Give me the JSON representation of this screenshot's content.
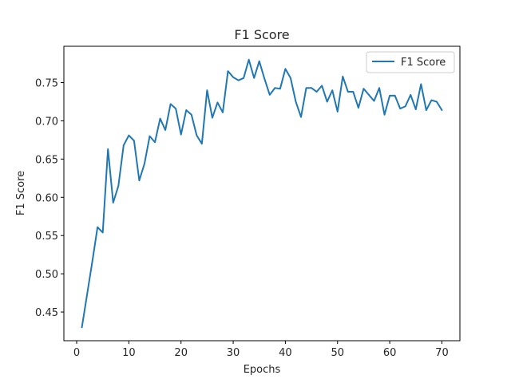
{
  "chart_data": {
    "type": "line",
    "title": "F1 Score",
    "xlabel": "Epochs",
    "ylabel": "F1 Score",
    "xlim": [
      -2.45,
      73.45
    ],
    "ylim": [
      0.4125,
      0.7975
    ],
    "xticks": [
      0,
      10,
      20,
      30,
      40,
      50,
      60,
      70
    ],
    "yticks": [
      0.45,
      0.5,
      0.55,
      0.6,
      0.65,
      0.7,
      0.75
    ],
    "ytick_labels": [
      "0.45",
      "0.50",
      "0.55",
      "0.60",
      "0.65",
      "0.70",
      "0.75"
    ],
    "grid": false,
    "legend_position": "upper right",
    "line_color": "#1f77b4",
    "series": [
      {
        "name": "F1 Score",
        "x": [
          1,
          2,
          3,
          4,
          5,
          6,
          7,
          8,
          9,
          10,
          11,
          12,
          13,
          14,
          15,
          16,
          17,
          18,
          19,
          20,
          21,
          22,
          23,
          24,
          25,
          26,
          27,
          28,
          29,
          30,
          31,
          32,
          33,
          34,
          35,
          36,
          37,
          38,
          39,
          40,
          41,
          42,
          43,
          44,
          45,
          46,
          47,
          48,
          49,
          50,
          51,
          52,
          53,
          54,
          55,
          56,
          57,
          58,
          59,
          60,
          61,
          62,
          63,
          64,
          65,
          66,
          67,
          68,
          69,
          70
        ],
        "values": [
          0.43,
          0.473,
          0.516,
          0.561,
          0.554,
          0.663,
          0.593,
          0.615,
          0.668,
          0.681,
          0.674,
          0.622,
          0.644,
          0.68,
          0.672,
          0.703,
          0.688,
          0.722,
          0.716,
          0.682,
          0.714,
          0.708,
          0.681,
          0.67,
          0.74,
          0.704,
          0.724,
          0.711,
          0.765,
          0.757,
          0.753,
          0.756,
          0.78,
          0.756,
          0.778,
          0.755,
          0.734,
          0.743,
          0.742,
          0.768,
          0.756,
          0.725,
          0.705,
          0.743,
          0.743,
          0.738,
          0.746,
          0.725,
          0.74,
          0.712,
          0.758,
          0.738,
          0.738,
          0.717,
          0.742,
          0.734,
          0.726,
          0.743,
          0.708,
          0.733,
          0.733,
          0.716,
          0.719,
          0.734,
          0.715,
          0.748,
          0.714,
          0.727,
          0.725,
          0.714
        ]
      }
    ]
  }
}
